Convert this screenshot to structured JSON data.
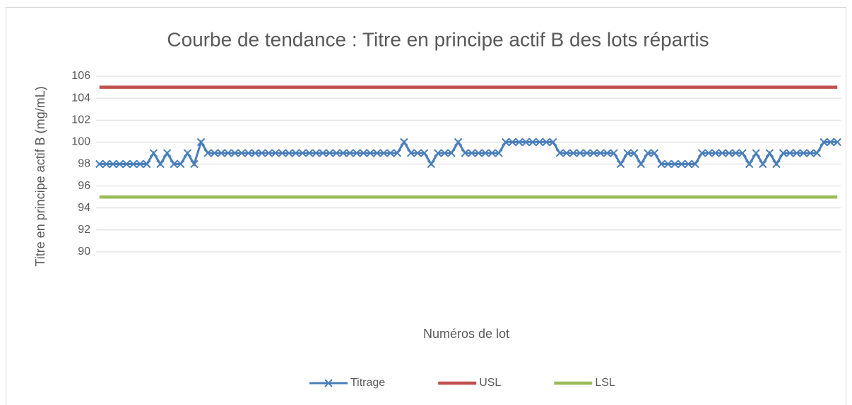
{
  "chart_data": {
    "type": "line",
    "title": "Courbe de tendance : Titre en principe actif B des lots répartis",
    "y_label": "Titre en principe actif B (mg/mL)",
    "x_label": "Numéros de lot",
    "ylim": [
      90,
      106
    ],
    "yticks": [
      90,
      92,
      94,
      96,
      98,
      100,
      102,
      104,
      106
    ],
    "grid": true,
    "legend": "bottom",
    "series": [
      {
        "name": "Titrage",
        "color": "#4a7ebb",
        "marker": "x",
        "values": [
          98,
          98,
          98,
          98,
          98,
          98,
          98,
          98,
          99,
          98,
          99,
          98,
          98,
          99,
          98,
          100,
          99,
          99,
          99,
          99,
          99,
          99,
          99,
          99,
          99,
          99,
          99,
          99,
          99,
          99,
          99,
          99,
          99,
          99,
          99,
          99,
          99,
          99,
          99,
          99,
          99,
          99,
          99,
          99,
          99,
          100,
          99,
          99,
          99,
          98,
          99,
          99,
          99,
          100,
          99,
          99,
          99,
          99,
          99,
          99,
          100,
          100,
          100,
          100,
          100,
          100,
          100,
          100,
          99,
          99,
          99,
          99,
          99,
          99,
          99,
          99,
          99,
          98,
          99,
          99,
          98,
          99,
          99,
          98,
          98,
          98,
          98,
          98,
          98,
          99,
          99,
          99,
          99,
          99,
          99,
          99,
          98,
          99,
          98,
          99,
          98,
          99,
          99,
          99,
          99,
          99,
          99,
          100,
          100,
          100
        ]
      },
      {
        "name": "USL",
        "color": "#c0504d",
        "values": [
          105,
          105,
          105,
          105,
          105,
          105,
          105,
          105,
          105,
          105,
          105,
          105,
          105,
          105,
          105,
          105,
          105,
          105,
          105,
          105,
          105,
          105,
          105,
          105,
          105,
          105,
          105,
          105,
          105,
          105,
          105,
          105,
          105,
          105,
          105,
          105,
          105,
          105,
          105,
          105,
          105,
          105,
          105,
          105,
          105,
          105,
          105,
          105,
          105,
          105,
          105,
          105,
          105,
          105,
          105,
          105,
          105,
          105,
          105,
          105,
          105,
          105,
          105,
          105,
          105,
          105,
          105,
          105,
          105,
          105,
          105,
          105,
          105,
          105,
          105,
          105,
          105,
          105,
          105,
          105,
          105,
          105,
          105,
          105,
          105,
          105,
          105,
          105,
          105,
          105,
          105,
          105,
          105,
          105,
          105,
          105,
          105,
          105,
          105,
          105,
          105,
          105,
          105,
          105,
          105,
          105,
          105,
          105,
          105,
          105
        ]
      },
      {
        "name": "LSL",
        "color": "#9bbb59",
        "values": [
          95,
          95,
          95,
          95,
          95,
          95,
          95,
          95,
          95,
          95,
          95,
          95,
          95,
          95,
          95,
          95,
          95,
          95,
          95,
          95,
          95,
          95,
          95,
          95,
          95,
          95,
          95,
          95,
          95,
          95,
          95,
          95,
          95,
          95,
          95,
          95,
          95,
          95,
          95,
          95,
          95,
          95,
          95,
          95,
          95,
          95,
          95,
          95,
          95,
          95,
          95,
          95,
          95,
          95,
          95,
          95,
          95,
          95,
          95,
          95,
          95,
          95,
          95,
          95,
          95,
          95,
          95,
          95,
          95,
          95,
          95,
          95,
          95,
          95,
          95,
          95,
          95,
          95,
          95,
          95,
          95,
          95,
          95,
          95,
          95,
          95,
          95,
          95,
          95,
          95,
          95,
          95,
          95,
          95,
          95,
          95,
          95,
          95,
          95,
          95,
          95,
          95,
          95,
          95,
          95,
          95,
          95,
          95,
          95,
          95
        ]
      }
    ]
  }
}
